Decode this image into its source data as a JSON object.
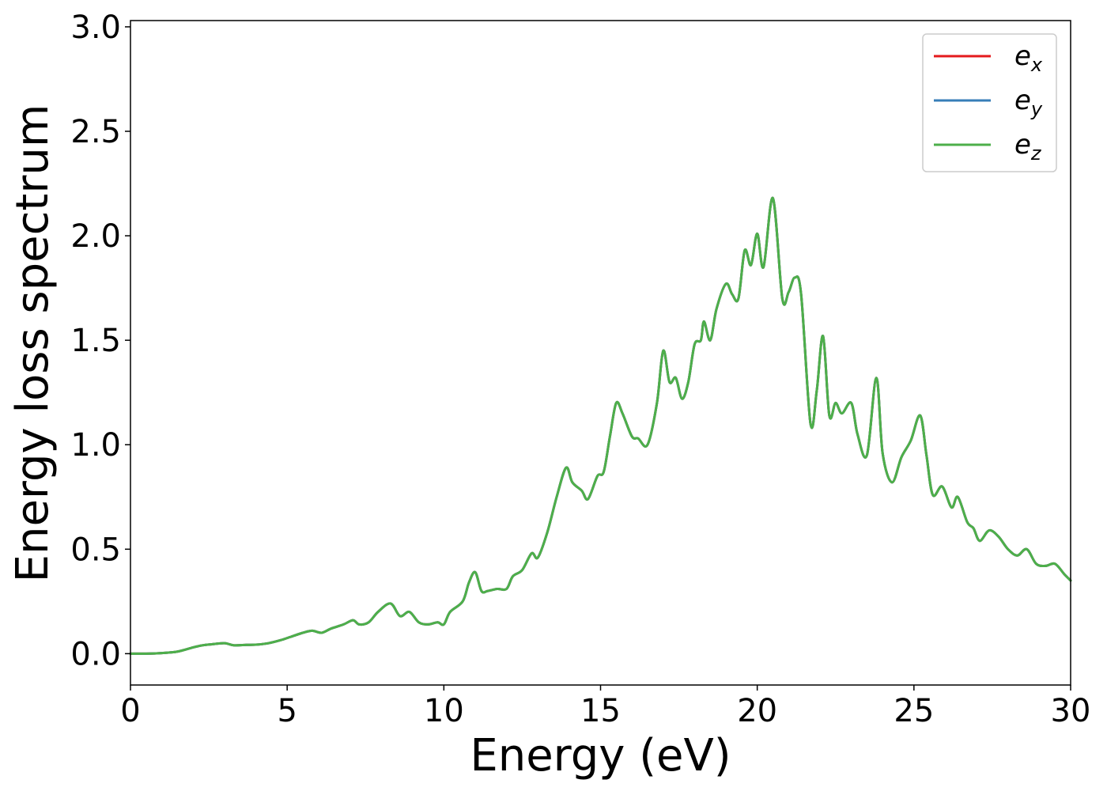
{
  "chart_data": {
    "type": "line",
    "title": "",
    "xlabel": "Energy (eV)",
    "ylabel": "Energy loss spectrum",
    "xlim": [
      0,
      30
    ],
    "ylim": [
      -0.15,
      3.03
    ],
    "xticks": [
      0,
      5,
      10,
      15,
      20,
      25,
      30
    ],
    "xtick_labels": [
      "0",
      "5",
      "10",
      "15",
      "20",
      "25",
      "30"
    ],
    "yticks": [
      0.0,
      0.5,
      1.0,
      1.5,
      2.0,
      2.5,
      3.0
    ],
    "ytick_labels": [
      "0.0",
      "0.5",
      "1.0",
      "1.5",
      "2.0",
      "2.5",
      "3.0"
    ],
    "grid": false,
    "legend_position": "top-right",
    "x": [
      0,
      0.5,
      1.0,
      1.5,
      2.0,
      2.3,
      2.6,
      3.0,
      3.3,
      3.7,
      4.0,
      4.4,
      4.8,
      5.1,
      5.5,
      5.8,
      6.1,
      6.4,
      6.8,
      7.1,
      7.3,
      7.6,
      7.9,
      8.3,
      8.6,
      8.9,
      9.2,
      9.5,
      9.8,
      10.0,
      10.2,
      10.6,
      10.8,
      11.0,
      11.2,
      11.4,
      11.7,
      12.0,
      12.2,
      12.5,
      12.8,
      13.0,
      13.3,
      13.6,
      13.9,
      14.1,
      14.4,
      14.6,
      14.9,
      15.1,
      15.3,
      15.5,
      15.7,
      16.0,
      16.2,
      16.5,
      16.8,
      17.0,
      17.2,
      17.4,
      17.6,
      17.8,
      18.0,
      18.2,
      18.3,
      18.5,
      18.7,
      19.0,
      19.2,
      19.4,
      19.6,
      19.8,
      20.0,
      20.2,
      20.5,
      20.8,
      21.0,
      21.2,
      21.4,
      21.7,
      21.9,
      22.1,
      22.3,
      22.5,
      22.7,
      23.0,
      23.2,
      23.5,
      23.8,
      24.0,
      24.3,
      24.6,
      24.9,
      25.2,
      25.4,
      25.6,
      25.9,
      26.2,
      26.4,
      26.7,
      26.9,
      27.1,
      27.4,
      27.7,
      28.0,
      28.3,
      28.6,
      28.9,
      29.2,
      29.5,
      29.8,
      30.0
    ],
    "series": [
      {
        "name": "e_x",
        "label_base": "e",
        "label_sub": "x",
        "color": "#e41a1c",
        "values": [
          0.0,
          0.0,
          0.003,
          0.01,
          0.03,
          0.04,
          0.045,
          0.05,
          0.04,
          0.042,
          0.043,
          0.05,
          0.065,
          0.08,
          0.1,
          0.11,
          0.1,
          0.12,
          0.14,
          0.16,
          0.14,
          0.15,
          0.2,
          0.24,
          0.18,
          0.2,
          0.15,
          0.14,
          0.15,
          0.14,
          0.2,
          0.25,
          0.34,
          0.39,
          0.3,
          0.3,
          0.31,
          0.31,
          0.37,
          0.4,
          0.48,
          0.46,
          0.58,
          0.75,
          0.89,
          0.82,
          0.78,
          0.74,
          0.85,
          0.87,
          1.04,
          1.2,
          1.15,
          1.04,
          1.03,
          1.0,
          1.2,
          1.45,
          1.3,
          1.32,
          1.22,
          1.3,
          1.48,
          1.5,
          1.59,
          1.5,
          1.65,
          1.77,
          1.72,
          1.7,
          1.93,
          1.86,
          2.01,
          1.85,
          2.18,
          1.7,
          1.73,
          1.8,
          1.72,
          1.1,
          1.26,
          1.52,
          1.14,
          1.2,
          1.15,
          1.2,
          1.05,
          0.95,
          1.32,
          0.96,
          0.82,
          0.94,
          1.02,
          1.14,
          0.95,
          0.76,
          0.8,
          0.7,
          0.75,
          0.63,
          0.6,
          0.54,
          0.59,
          0.56,
          0.5,
          0.47,
          0.5,
          0.43,
          0.42,
          0.43,
          0.38,
          0.35
        ]
      },
      {
        "name": "e_y",
        "label_base": "e",
        "label_sub": "y",
        "color": "#377eb8",
        "values": [
          0.0,
          0.0,
          0.003,
          0.01,
          0.03,
          0.04,
          0.045,
          0.05,
          0.04,
          0.042,
          0.043,
          0.05,
          0.065,
          0.08,
          0.1,
          0.11,
          0.1,
          0.12,
          0.14,
          0.16,
          0.14,
          0.15,
          0.2,
          0.24,
          0.18,
          0.2,
          0.15,
          0.14,
          0.15,
          0.14,
          0.2,
          0.25,
          0.34,
          0.39,
          0.3,
          0.3,
          0.31,
          0.31,
          0.37,
          0.4,
          0.48,
          0.46,
          0.58,
          0.75,
          0.89,
          0.82,
          0.78,
          0.74,
          0.85,
          0.87,
          1.04,
          1.2,
          1.15,
          1.04,
          1.03,
          1.0,
          1.2,
          1.45,
          1.3,
          1.32,
          1.22,
          1.3,
          1.48,
          1.5,
          1.59,
          1.5,
          1.65,
          1.77,
          1.72,
          1.7,
          1.93,
          1.86,
          2.01,
          1.85,
          2.18,
          1.7,
          1.73,
          1.8,
          1.72,
          1.1,
          1.26,
          1.52,
          1.14,
          1.2,
          1.15,
          1.2,
          1.05,
          0.95,
          1.32,
          0.96,
          0.82,
          0.94,
          1.02,
          1.14,
          0.95,
          0.76,
          0.8,
          0.7,
          0.75,
          0.63,
          0.6,
          0.54,
          0.59,
          0.56,
          0.5,
          0.47,
          0.5,
          0.43,
          0.42,
          0.43,
          0.38,
          0.35
        ]
      },
      {
        "name": "e_z",
        "label_base": "e",
        "label_sub": "z",
        "color": "#4daf4a",
        "values": [
          0.0,
          0.0,
          0.003,
          0.01,
          0.03,
          0.04,
          0.045,
          0.05,
          0.04,
          0.042,
          0.043,
          0.05,
          0.065,
          0.08,
          0.1,
          0.11,
          0.1,
          0.12,
          0.14,
          0.16,
          0.14,
          0.15,
          0.2,
          0.24,
          0.18,
          0.2,
          0.15,
          0.14,
          0.15,
          0.14,
          0.2,
          0.25,
          0.34,
          0.39,
          0.3,
          0.3,
          0.31,
          0.31,
          0.37,
          0.4,
          0.48,
          0.46,
          0.58,
          0.75,
          0.89,
          0.82,
          0.78,
          0.74,
          0.85,
          0.87,
          1.04,
          1.2,
          1.15,
          1.04,
          1.03,
          1.0,
          1.2,
          1.45,
          1.3,
          1.32,
          1.22,
          1.3,
          1.48,
          1.5,
          1.59,
          1.5,
          1.65,
          1.77,
          1.72,
          1.7,
          1.93,
          1.86,
          2.01,
          1.85,
          2.18,
          1.7,
          1.73,
          1.8,
          1.72,
          1.1,
          1.26,
          1.52,
          1.14,
          1.2,
          1.15,
          1.2,
          1.05,
          0.95,
          1.32,
          0.96,
          0.82,
          0.94,
          1.02,
          1.14,
          0.95,
          0.76,
          0.8,
          0.7,
          0.75,
          0.63,
          0.6,
          0.54,
          0.59,
          0.56,
          0.5,
          0.47,
          0.5,
          0.43,
          0.42,
          0.43,
          0.38,
          0.35
        ]
      }
    ]
  }
}
